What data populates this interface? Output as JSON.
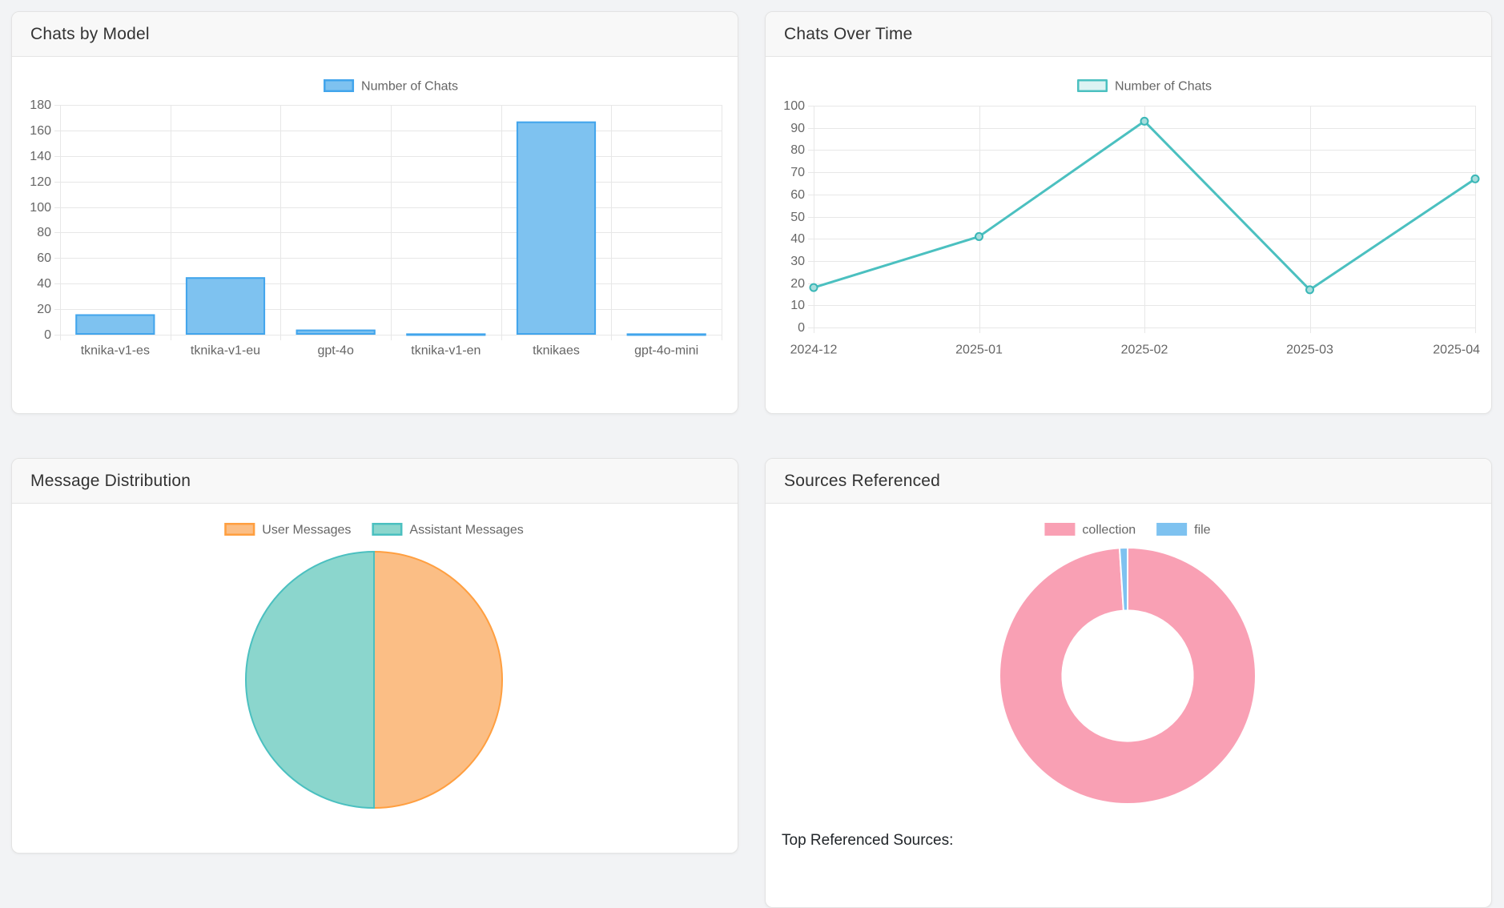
{
  "page": {
    "background": "#f2f3f5"
  },
  "cards": [
    {
      "title": "Chats by Model"
    },
    {
      "title": "Chats Over Time"
    },
    {
      "title": "Message Distribution"
    },
    {
      "title": "Sources Referenced",
      "footer": "Top Referenced Sources:"
    }
  ],
  "chart_data": [
    {
      "type": "bar",
      "title": "Chats by Model",
      "categories": [
        "tknika-v1-es",
        "tknika-v1-eu",
        "gpt-4o",
        "tknika-v1-en",
        "tknikaes",
        "gpt-4o-mini"
      ],
      "series": [
        {
          "name": "Number of Chats",
          "values": [
            16,
            45,
            4,
            1,
            167,
            1
          ]
        }
      ],
      "xlabel": "",
      "ylabel": "",
      "ylim": [
        0,
        180
      ],
      "ytick_step": 20,
      "grid": true,
      "legend_position": "top",
      "colors": {
        "fill": "#7EC2F0",
        "border": "#42A5EC",
        "grid": "#e7e7e7",
        "tick_text": "#666666"
      }
    },
    {
      "type": "line",
      "title": "Chats Over Time",
      "x": [
        "2024-12",
        "2025-01",
        "2025-02",
        "2025-03",
        "2025-04"
      ],
      "series": [
        {
          "name": "Number of Chats",
          "values": [
            18,
            41,
            93,
            17,
            67
          ]
        }
      ],
      "xlabel": "",
      "ylabel": "",
      "ylim": [
        0,
        100
      ],
      "ytick_step": 10,
      "grid": true,
      "legend_position": "top",
      "colors": {
        "line": "#4BC0C0",
        "point_fill": "#a8dedd",
        "point_border": "#3ab7b7",
        "legend_fill": "#ddf3f3",
        "grid": "#e7e7e7",
        "tick_text": "#666666"
      }
    },
    {
      "type": "pie",
      "title": "Message Distribution",
      "labels": [
        "User Messages",
        "Assistant Messages"
      ],
      "values": [
        50,
        50
      ],
      "legend_position": "top",
      "colors": {
        "fills": [
          "#FBBE85",
          "#8BD6CD"
        ],
        "borders": [
          "#FF9F40",
          "#4BC0C0"
        ]
      }
    },
    {
      "type": "doughnut",
      "title": "Sources Referenced",
      "labels": [
        "collection",
        "file"
      ],
      "values": [
        99,
        1
      ],
      "legend_position": "top",
      "hole_ratio": 0.51,
      "colors": {
        "fills": [
          "#F9A0B4",
          "#7EC2F0"
        ],
        "borders": [
          "#ffffff",
          "#ffffff"
        ]
      }
    }
  ]
}
